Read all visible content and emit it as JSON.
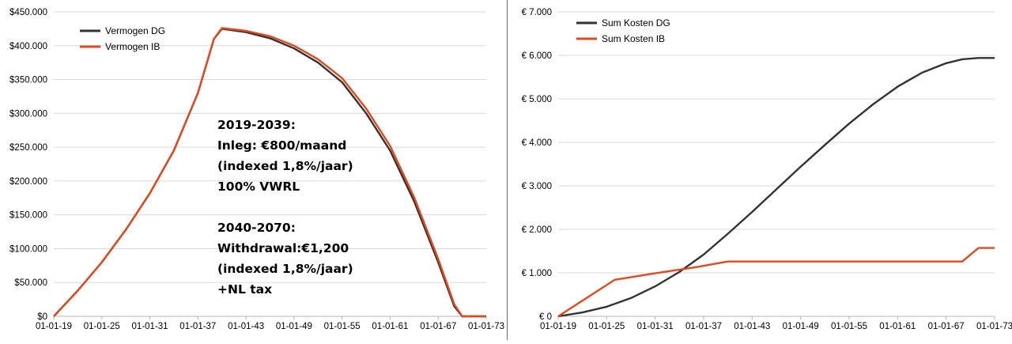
{
  "chart_data": [
    {
      "type": "line",
      "title": "",
      "xlabel": "",
      "ylabel": "",
      "x_ticks": [
        "01-01-19",
        "01-01-25",
        "01-01-31",
        "01-01-37",
        "01-01-43",
        "01-01-49",
        "01-01-55",
        "01-01-61",
        "01-01-67",
        "01-01-73"
      ],
      "y_ticks": [
        "$0",
        "$50.000",
        "$100.000",
        "$150.000",
        "$200.000",
        "$250.000",
        "$300.000",
        "$350.000",
        "$400.000",
        "$450.000"
      ],
      "xlim": [
        2019,
        2073
      ],
      "ylim": [
        0,
        450000
      ],
      "grid": true,
      "legend_position": "top-left",
      "series": [
        {
          "name": "Vermogen DG",
          "color": "#333333",
          "x": [
            2019,
            2022,
            2025,
            2028,
            2031,
            2034,
            2037,
            2039,
            2040,
            2043,
            2046,
            2049,
            2052,
            2055,
            2058,
            2061,
            2064,
            2067,
            2069,
            2070,
            2073
          ],
          "y": [
            0,
            38000,
            80000,
            128000,
            182000,
            245000,
            330000,
            410000,
            425000,
            420000,
            411000,
            396000,
            375000,
            346000,
            300000,
            245000,
            170000,
            80000,
            15000,
            0,
            0
          ]
        },
        {
          "name": "Vermogen IB",
          "color": "#e8461b",
          "x": [
            2019,
            2022,
            2025,
            2028,
            2031,
            2034,
            2037,
            2039,
            2040,
            2043,
            2046,
            2049,
            2052,
            2055,
            2058,
            2061,
            2064,
            2067,
            2069,
            2070,
            2073
          ],
          "y": [
            0,
            38000,
            80000,
            128000,
            182000,
            245000,
            330000,
            410000,
            426000,
            422000,
            414000,
            400000,
            380000,
            352000,
            307000,
            252000,
            176000,
            85000,
            18000,
            0,
            0
          ]
        }
      ],
      "annotation_lines": [
        "2019-2039:",
        "Inleg: €800/maand",
        "(indexed 1,8%/jaar)",
        "100% VWRL",
        "",
        "2040-2070:",
        "Withdrawal:€1,200",
        "(indexed 1,8%/jaar)",
        "+NL tax"
      ]
    },
    {
      "type": "line",
      "title": "",
      "xlabel": "",
      "ylabel": "",
      "x_ticks": [
        "01-01-19",
        "01-01-25",
        "01-01-31",
        "01-01-37",
        "01-01-43",
        "01-01-49",
        "01-01-55",
        "01-01-61",
        "01-01-67",
        "01-01-73"
      ],
      "y_ticks": [
        "€ 0",
        "€ 1.000",
        "€ 2.000",
        "€ 3.000",
        "€ 4.000",
        "€ 5.000",
        "€ 6.000",
        "€ 7.000"
      ],
      "xlim": [
        2019,
        2073
      ],
      "ylim": [
        0,
        7000
      ],
      "grid": true,
      "legend_position": "top-left",
      "series": [
        {
          "name": "Sum Kosten DG",
          "color": "#333333",
          "x": [
            2019,
            2022,
            2025,
            2028,
            2031,
            2034,
            2037,
            2040,
            2043,
            2046,
            2049,
            2052,
            2055,
            2058,
            2061,
            2064,
            2067,
            2069,
            2071,
            2073
          ],
          "y": [
            0,
            90,
            220,
            420,
            690,
            1020,
            1420,
            1900,
            2400,
            2920,
            3440,
            3940,
            4430,
            4880,
            5280,
            5600,
            5820,
            5910,
            5940,
            5940
          ]
        },
        {
          "name": "Sum Kosten IB",
          "color": "#e8461b",
          "x": [
            2019,
            2026,
            2031,
            2036,
            2040,
            2043,
            2049,
            2055,
            2061,
            2067,
            2069,
            2071,
            2073
          ],
          "y": [
            0,
            840,
            990,
            1130,
            1260,
            1260,
            1260,
            1260,
            1260,
            1260,
            1260,
            1570,
            1570
          ]
        }
      ]
    }
  ]
}
